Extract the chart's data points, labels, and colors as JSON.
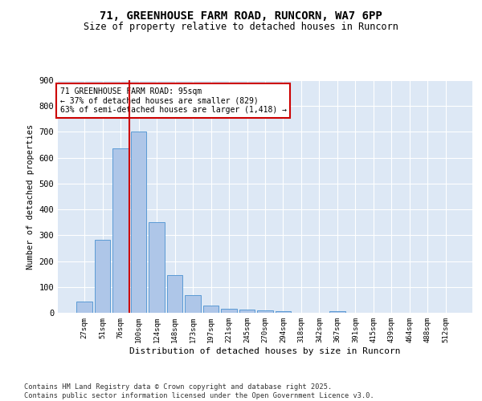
{
  "title1": "71, GREENHOUSE FARM ROAD, RUNCORN, WA7 6PP",
  "title2": "Size of property relative to detached houses in Runcorn",
  "xlabel": "Distribution of detached houses by size in Runcorn",
  "ylabel": "Number of detached properties",
  "categories": [
    "27sqm",
    "51sqm",
    "76sqm",
    "100sqm",
    "124sqm",
    "148sqm",
    "173sqm",
    "197sqm",
    "221sqm",
    "245sqm",
    "270sqm",
    "294sqm",
    "318sqm",
    "342sqm",
    "367sqm",
    "391sqm",
    "415sqm",
    "439sqm",
    "464sqm",
    "488sqm",
    "512sqm"
  ],
  "values": [
    42,
    283,
    635,
    700,
    350,
    147,
    68,
    28,
    15,
    11,
    10,
    7,
    0,
    0,
    6,
    0,
    0,
    0,
    0,
    0,
    0
  ],
  "bar_color": "#aec6e8",
  "bar_edge_color": "#5b9bd5",
  "vline_color": "#cc0000",
  "vline_x_index": 2.5,
  "annotation_text": "71 GREENHOUSE FARM ROAD: 95sqm\n← 37% of detached houses are smaller (829)\n63% of semi-detached houses are larger (1,418) →",
  "annotation_box_facecolor": "#ffffff",
  "annotation_box_edgecolor": "#cc0000",
  "ylim": [
    0,
    900
  ],
  "yticks": [
    0,
    100,
    200,
    300,
    400,
    500,
    600,
    700,
    800,
    900
  ],
  "bg_color": "#dde8f5",
  "footer_text": "Contains HM Land Registry data © Crown copyright and database right 2025.\nContains public sector information licensed under the Open Government Licence v3.0."
}
